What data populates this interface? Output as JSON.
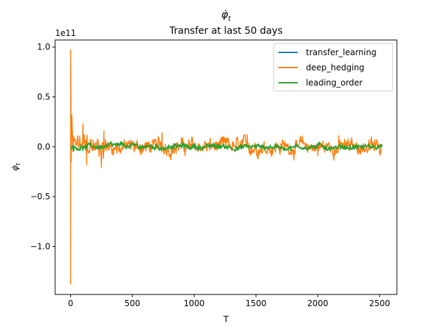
{
  "chart_data": {
    "type": "line",
    "title": "φ̇_t",
    "subtitle": "Transfer at last 50 days",
    "xlabel": "T",
    "ylabel": "φ̇_t",
    "y_offset_text": "1e11",
    "xlim": [
      -125,
      2640
    ],
    "ylim": [
      -1.48,
      1.07
    ],
    "x_ticks": [
      0,
      500,
      1000,
      1500,
      2000,
      2500
    ],
    "x_tick_labels": [
      "0",
      "500",
      "1000",
      "1500",
      "2000",
      "2500"
    ],
    "y_ticks": [
      1.0,
      0.5,
      0.0,
      -0.5,
      -1.0
    ],
    "y_tick_labels": [
      "1.0",
      "0.5",
      "0.0",
      "−0.5",
      "−1.0"
    ],
    "grid": false,
    "legend_position": "top-right",
    "x_range": [
      0,
      2520
    ],
    "series": [
      {
        "name": "transfer_learning",
        "color": "#1f77b4",
        "visibility": "hidden beneath the leading_order trace"
      },
      {
        "name": "deep_hedging",
        "color": "#ff7f0e",
        "key_points": [
          [
            0,
            -1.38
          ],
          [
            1,
            0.97
          ],
          [
            5,
            -0.15
          ],
          [
            10,
            0.32
          ],
          [
            20,
            -0.05
          ],
          [
            100,
            0.23
          ],
          [
            130,
            -0.18
          ],
          [
            250,
            -0.21
          ],
          [
            270,
            0.16
          ],
          [
            740,
            0.14
          ],
          [
            1430,
            0.12
          ],
          [
            2000,
            -0.09
          ],
          [
            2170,
            0.11
          ]
        ],
        "amplitude_after_start": 0.1
      },
      {
        "name": "leading_order",
        "color": "#2ca02c",
        "amplitude": 0.04
      }
    ]
  }
}
